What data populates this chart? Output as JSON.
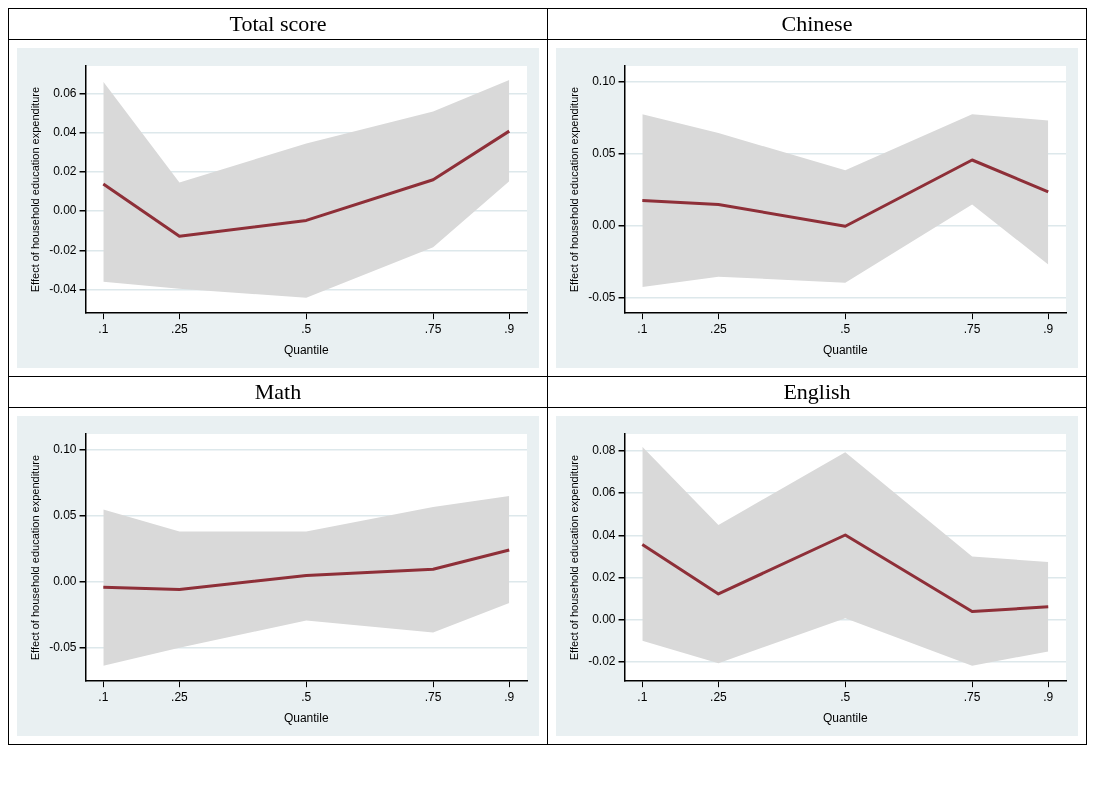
{
  "chart_data": [
    {
      "type": "line",
      "title": "Total score",
      "xlabel": "Quantile",
      "ylabel": "Effect of household education expenditure",
      "x": [
        0.1,
        0.25,
        0.5,
        0.75,
        0.9
      ],
      "series": [
        {
          "color": "#8e2f38",
          "values": [
            0.0139,
            -0.0128,
            -0.0047,
            0.016,
            0.0408
          ],
          "lower": [
            -0.036,
            -0.0396,
            -0.0441,
            -0.0184,
            0.0152
          ],
          "upper": [
            0.066,
            0.0146,
            0.0345,
            0.0508,
            0.0669
          ]
        }
      ],
      "xlim": [
        0.065,
        0.935
      ],
      "xticks": [
        {
          "value": 0.1,
          "label": ".1"
        },
        {
          "value": 0.25,
          "label": ".25"
        },
        {
          "value": 0.5,
          "label": ".5"
        },
        {
          "value": 0.75,
          "label": ".75"
        },
        {
          "value": 0.9,
          "label": ".9"
        }
      ],
      "ylim": [
        -0.052,
        0.074
      ],
      "yticks": [
        {
          "value": -0.04,
          "label": "-0.04"
        },
        {
          "value": -0.02,
          "label": "-0.02"
        },
        {
          "value": 0,
          "label": "0.00"
        },
        {
          "value": 0.02,
          "label": "0.02"
        },
        {
          "value": 0.04,
          "label": "0.04"
        },
        {
          "value": 0.06,
          "label": "0.06"
        }
      ],
      "grid": "y"
    },
    {
      "type": "line",
      "title": "Chinese",
      "xlabel": "Quantile",
      "ylabel": "Effect of household education expenditure",
      "x": [
        0.1,
        0.25,
        0.5,
        0.75,
        0.9
      ],
      "series": [
        {
          "color": "#8e2f38",
          "values": [
            0.0174,
            0.0146,
            -0.0005,
            0.0456,
            0.0234
          ],
          "lower": [
            -0.0428,
            -0.0356,
            -0.0398,
            0.0146,
            -0.0271
          ],
          "upper": [
            0.0775,
            0.0644,
            0.0384,
            0.0775,
            0.0731
          ]
        }
      ],
      "xlim": [
        0.065,
        0.935
      ],
      "xticks": [
        {
          "value": 0.1,
          "label": ".1"
        },
        {
          "value": 0.25,
          "label": ".25"
        },
        {
          "value": 0.5,
          "label": ".5"
        },
        {
          "value": 0.75,
          "label": ".75"
        },
        {
          "value": 0.9,
          "label": ".9"
        }
      ],
      "ylim": [
        -0.061,
        0.111
      ],
      "yticks": [
        {
          "value": -0.05,
          "label": "-0.05"
        },
        {
          "value": 0,
          "label": "0.00"
        },
        {
          "value": 0.05,
          "label": "0.05"
        },
        {
          "value": 0.1,
          "label": "0.10"
        }
      ],
      "grid": "y"
    },
    {
      "type": "line",
      "title": "Math",
      "xlabel": "Quantile",
      "ylabel": "Effect of household education expenditure",
      "x": [
        0.1,
        0.25,
        0.5,
        0.75,
        0.9
      ],
      "series": [
        {
          "color": "#8e2f38",
          "values": [
            -0.004,
            -0.0057,
            0.005,
            0.0097,
            0.0242
          ],
          "lower": [
            -0.0634,
            -0.0497,
            -0.029,
            -0.0382,
            -0.0159
          ],
          "upper": [
            0.0549,
            0.0382,
            0.0382,
            0.0568,
            0.0651
          ]
        }
      ],
      "xlim": [
        0.065,
        0.935
      ],
      "xticks": [
        {
          "value": 0.1,
          "label": ".1"
        },
        {
          "value": 0.25,
          "label": ".25"
        },
        {
          "value": 0.5,
          "label": ".5"
        },
        {
          "value": 0.75,
          "label": ".75"
        },
        {
          "value": 0.9,
          "label": ".9"
        }
      ],
      "ylim": [
        -0.075,
        0.112
      ],
      "yticks": [
        {
          "value": -0.05,
          "label": "-0.05"
        },
        {
          "value": 0,
          "label": "0.00"
        },
        {
          "value": 0.05,
          "label": "0.05"
        },
        {
          "value": 0.1,
          "label": "0.10"
        }
      ],
      "grid": "y"
    },
    {
      "type": "line",
      "title": "English",
      "xlabel": "Quantile",
      "ylabel": "Effect of household education expenditure",
      "x": [
        0.1,
        0.25,
        0.5,
        0.75,
        0.9
      ],
      "series": [
        {
          "color": "#8e2f38",
          "values": [
            0.0357,
            0.0123,
            0.0402,
            0.004,
            0.0062
          ],
          "lower": [
            -0.0099,
            -0.0205,
            0.0008,
            -0.0217,
            -0.0149
          ],
          "upper": [
            0.082,
            0.0449,
            0.0794,
            0.03,
            0.0274
          ]
        }
      ],
      "xlim": [
        0.065,
        0.935
      ],
      "xticks": [
        {
          "value": 0.1,
          "label": ".1"
        },
        {
          "value": 0.25,
          "label": ".25"
        },
        {
          "value": 0.5,
          "label": ".5"
        },
        {
          "value": 0.75,
          "label": ".75"
        },
        {
          "value": 0.9,
          "label": ".9"
        }
      ],
      "ylim": [
        -0.029,
        0.088
      ],
      "yticks": [
        {
          "value": -0.02,
          "label": "-0.02"
        },
        {
          "value": 0,
          "label": "0.00"
        },
        {
          "value": 0.02,
          "label": "0.02"
        },
        {
          "value": 0.04,
          "label": "0.04"
        },
        {
          "value": 0.06,
          "label": "0.06"
        },
        {
          "value": 0.08,
          "label": "0.08"
        }
      ],
      "grid": "y"
    }
  ]
}
